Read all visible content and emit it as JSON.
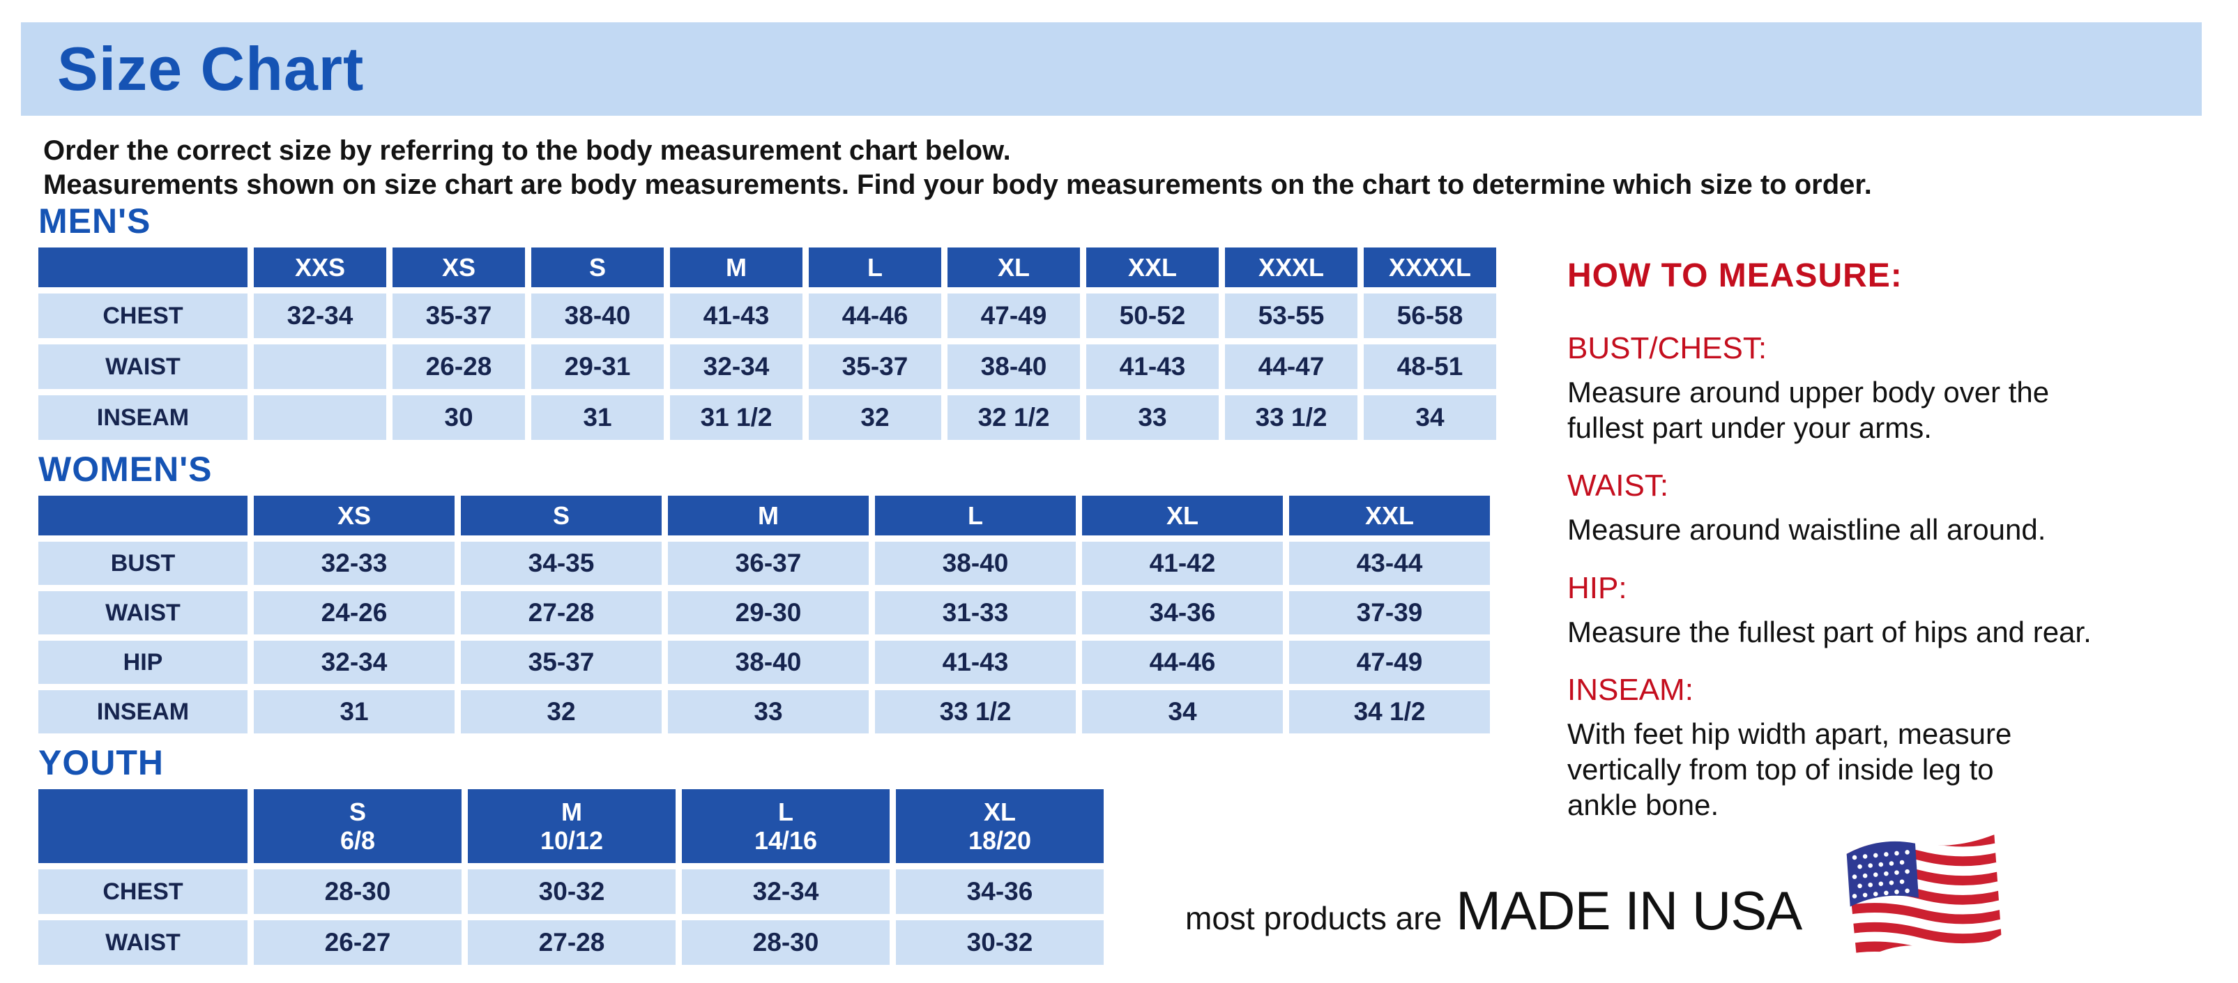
{
  "page": {
    "title": "Size Chart",
    "intro_line1": "Order the correct size by referring to the body measurement chart below.",
    "intro_line2": "Measurements shown on size chart are body measurements.  Find your body measurements on the chart to determine which size to order."
  },
  "colors": {
    "banner_blue": "#c2d9f3",
    "accent_blue": "#1553b4",
    "header_blue": "#2152a9",
    "cell_blue": "#cddff4",
    "navy_text": "#16244e",
    "heading_red": "#c40e1e",
    "flag_red": "#cc2030",
    "flag_blue": "#2e3a94"
  },
  "tables": {
    "mens": {
      "section_label": "MEN'S",
      "columns": [
        "",
        "XXS",
        "XS",
        "S",
        "M",
        "L",
        "XL",
        "XXL",
        "XXXL",
        "XXXXL"
      ],
      "rows": [
        {
          "label": "CHEST",
          "cells": [
            "32-34",
            "35-37",
            "38-40",
            "41-43",
            "44-46",
            "47-49",
            "50-52",
            "53-55",
            "56-58"
          ]
        },
        {
          "label": "WAIST",
          "cells": [
            "",
            "26-28",
            "29-31",
            "32-34",
            "35-37",
            "38-40",
            "41-43",
            "44-47",
            "48-51"
          ]
        },
        {
          "label": "INSEAM",
          "cells": [
            "",
            "30",
            "31",
            "31 1/2",
            "32",
            "32 1/2",
            "33",
            "33 1/2",
            "34"
          ]
        }
      ]
    },
    "womens": {
      "section_label": "WOMEN'S",
      "columns": [
        "",
        "XS",
        "S",
        "M",
        "L",
        "XL",
        "XXL"
      ],
      "rows": [
        {
          "label": "BUST",
          "cells": [
            "32-33",
            "34-35",
            "36-37",
            "38-40",
            "41-42",
            "43-44"
          ]
        },
        {
          "label": "WAIST",
          "cells": [
            "24-26",
            "27-28",
            "29-30",
            "31-33",
            "34-36",
            "37-39"
          ]
        },
        {
          "label": "HIP",
          "cells": [
            "32-34",
            "35-37",
            "38-40",
            "41-43",
            "44-46",
            "47-49"
          ]
        },
        {
          "label": "INSEAM",
          "cells": [
            "31",
            "32",
            "33",
            "33 1/2",
            "34",
            "34 1/2"
          ]
        }
      ]
    },
    "youth": {
      "section_label": "YOUTH",
      "columns": [
        "",
        "S\n6/8",
        "M\n10/12",
        "L\n14/16",
        "XL\n18/20"
      ],
      "rows": [
        {
          "label": "CHEST",
          "cells": [
            "28-30",
            "30-32",
            "32-34",
            "34-36"
          ]
        },
        {
          "label": "WAIST",
          "cells": [
            "26-27",
            "27-28",
            "28-30",
            "30-32"
          ]
        }
      ]
    }
  },
  "how_to_measure": {
    "title": "HOW TO MEASURE:",
    "items": [
      {
        "label": "BUST/CHEST:",
        "text": "Measure around upper body over the\nfullest part under your arms."
      },
      {
        "label": "WAIST:",
        "text": "Measure around waistline all around."
      },
      {
        "label": "HIP:",
        "text": "Measure the fullest part of hips and rear."
      },
      {
        "label": "INSEAM:",
        "text": "With feet hip width apart, measure\nvertically from top of inside leg to\nankle bone."
      }
    ]
  },
  "footer": {
    "made_in_prefix": "most products are",
    "made_in": "MADE IN USA",
    "flag_icon": "usa-flag-icon"
  }
}
